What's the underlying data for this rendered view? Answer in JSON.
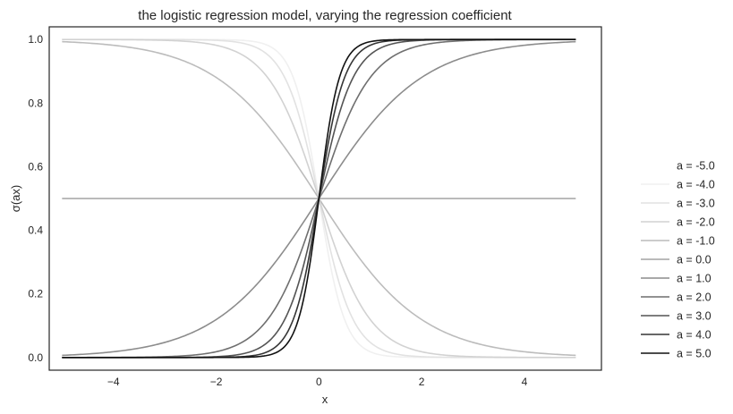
{
  "chart_data": {
    "type": "line",
    "title": "the logistic regression model, varying the regression coefficient",
    "xlabel": "x",
    "ylabel": "σ(ax)",
    "xlim": [
      -5.25,
      5.5
    ],
    "ylim": [
      -0.04,
      1.04
    ],
    "grid": false,
    "legend": "outside-right",
    "x_range": [
      -5,
      5
    ],
    "xticks": [
      -4,
      -2,
      0,
      2,
      4
    ],
    "xtick_labels": [
      "−4",
      "−2",
      "0",
      "2",
      "4"
    ],
    "yticks": [
      0.0,
      0.2,
      0.4,
      0.6,
      0.8,
      1.0
    ],
    "ytick_labels": [
      "0.0",
      "0.2",
      "0.4",
      "0.6",
      "0.8",
      "1.0"
    ],
    "series": [
      {
        "name": "a = -5.0",
        "a": -5.0,
        "color": "#ffffff"
      },
      {
        "name": "a = -4.0",
        "a": -4.0,
        "color": "#f0f0f0"
      },
      {
        "name": "a = -3.0",
        "a": -3.0,
        "color": "#e2e2e2"
      },
      {
        "name": "a = -2.0",
        "a": -2.0,
        "color": "#d2d2d2"
      },
      {
        "name": "a = -1.0",
        "a": -1.0,
        "color": "#bcbcbc"
      },
      {
        "name": "a = 0.0",
        "a": 0.0,
        "color": "#a4a4a4"
      },
      {
        "name": "a = 1.0",
        "a": 1.0,
        "color": "#8c8c8c"
      },
      {
        "name": "a = 2.0",
        "a": 2.0,
        "color": "#6f6f6f"
      },
      {
        "name": "a = 3.0",
        "a": 3.0,
        "color": "#545454"
      },
      {
        "name": "a = 4.0",
        "a": 4.0,
        "color": "#353535"
      },
      {
        "name": "a = 5.0",
        "a": 5.0,
        "color": "#111111"
      }
    ]
  }
}
